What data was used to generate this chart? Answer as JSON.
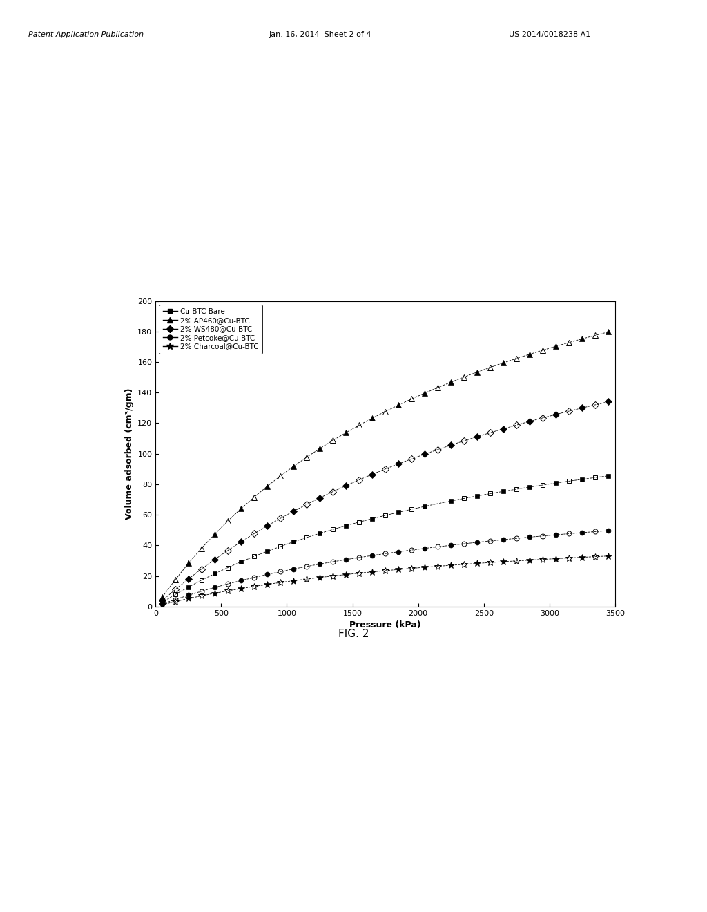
{
  "fig_label": "FIG. 2",
  "xlabel": "Pressure (kPa)",
  "ylabel": "Volume adsorbed (cm³/gm)",
  "xlim": [
    0,
    3500
  ],
  "ylim": [
    0,
    200
  ],
  "xticks": [
    0,
    500,
    1000,
    1500,
    2000,
    2500,
    3000,
    3500
  ],
  "yticks": [
    0,
    20,
    40,
    60,
    80,
    100,
    120,
    140,
    160,
    180,
    200
  ],
  "header_left": "Patent Application Publication",
  "header_mid": "Jan. 16, 2014  Sheet 2 of 4",
  "header_right": "US 2014/0018238 A1",
  "curve_params": [
    {
      "V_max": 155,
      "P_half": 2800,
      "marker": "s",
      "ms": 5,
      "label": "Cu-BTC Bare"
    },
    {
      "V_max": 310,
      "P_half": 2500,
      "marker": "^",
      "ms": 6,
      "label": "2% AP460@Cu-BTC"
    },
    {
      "V_max": 270,
      "P_half": 3500,
      "marker": "D",
      "ms": 5,
      "label": "2% WS480@Cu-BTC"
    },
    {
      "V_max": 90,
      "P_half": 2800,
      "marker": "o",
      "ms": 5,
      "label": "2% Petcoke@Cu-BTC"
    },
    {
      "V_max": 57,
      "P_half": 2500,
      "marker": "*",
      "ms": 7,
      "label": "2% Charcoal@Cu-BTC"
    }
  ],
  "n_fine": 500,
  "n_markers": 35,
  "background_color": "#ffffff"
}
